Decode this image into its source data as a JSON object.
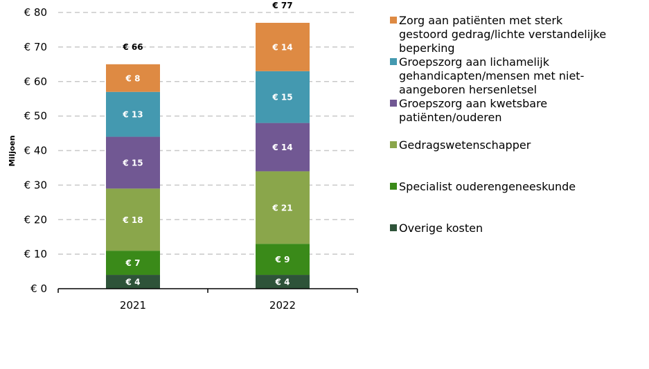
{
  "chart_data": {
    "type": "bar",
    "stacked": true,
    "title": "",
    "xlabel": "",
    "ylabel": "Miljoen",
    "ylim": [
      0,
      80
    ],
    "yticks": [
      "€ 0",
      "€ 10",
      "€ 20",
      "€ 30",
      "€ 40",
      "€ 50",
      "€ 60",
      "€ 70",
      "€ 80"
    ],
    "grid": true,
    "legend_position": "right",
    "categories": [
      "2021",
      "2022"
    ],
    "series": [
      {
        "name": "Overige kosten",
        "color": "#2e5339",
        "values": [
          4,
          4
        ],
        "labels": [
          "€ 4",
          "€ 4"
        ]
      },
      {
        "name": "Specialist ouderengeneeskunde",
        "color": "#3a8a19",
        "values": [
          7,
          9
        ],
        "labels": [
          "€ 7",
          "€ 9"
        ]
      },
      {
        "name": "Gedragswetenschapper",
        "color": "#8aa64b",
        "values": [
          18,
          21
        ],
        "labels": [
          "€ 18",
          "€ 21"
        ]
      },
      {
        "name": "Groepszorg aan kwetsbare patiënten/ouderen",
        "color": "#715893",
        "values": [
          15,
          14
        ],
        "labels": [
          "€ 15",
          "€ 14"
        ]
      },
      {
        "name": "Groepszorg aan lichamelijk gehandicapten/mensen met niet-aangeboren hersenletsel",
        "color": "#4499b0",
        "values": [
          13,
          15
        ],
        "labels": [
          "€ 13",
          "€ 15"
        ]
      },
      {
        "name": "Zorg aan patiënten met sterk gestoord gedrag/lichte verstandelijke beperking",
        "color": "#de8a43",
        "values": [
          8,
          14
        ],
        "labels": [
          "€ 8",
          "€ 14"
        ]
      }
    ],
    "totals": [
      66,
      77
    ],
    "total_labels": [
      "€ 66",
      "€ 77"
    ],
    "legend": [
      {
        "lines": [
          "Zorg aan patiënten met sterk",
          "gestoord gedrag/lichte verstandelijke",
          "beperking"
        ],
        "color": "#de8a43"
      },
      {
        "lines": [
          "Groepszorg aan lichamelijk",
          "gehandicapten/mensen met niet-",
          "aangeboren hersenletsel"
        ],
        "color": "#4499b0"
      },
      {
        "lines": [
          "Groepszorg aan kwetsbare",
          "patiënten/ouderen"
        ],
        "color": "#715893"
      },
      {
        "lines": [
          "Gedragswetenschapper"
        ],
        "color": "#8aa64b"
      },
      {
        "lines": [
          "Specialist ouderengeneeskunde"
        ],
        "color": "#3a8a19"
      },
      {
        "lines": [
          "Overige kosten"
        ],
        "color": "#2e5339"
      }
    ]
  }
}
